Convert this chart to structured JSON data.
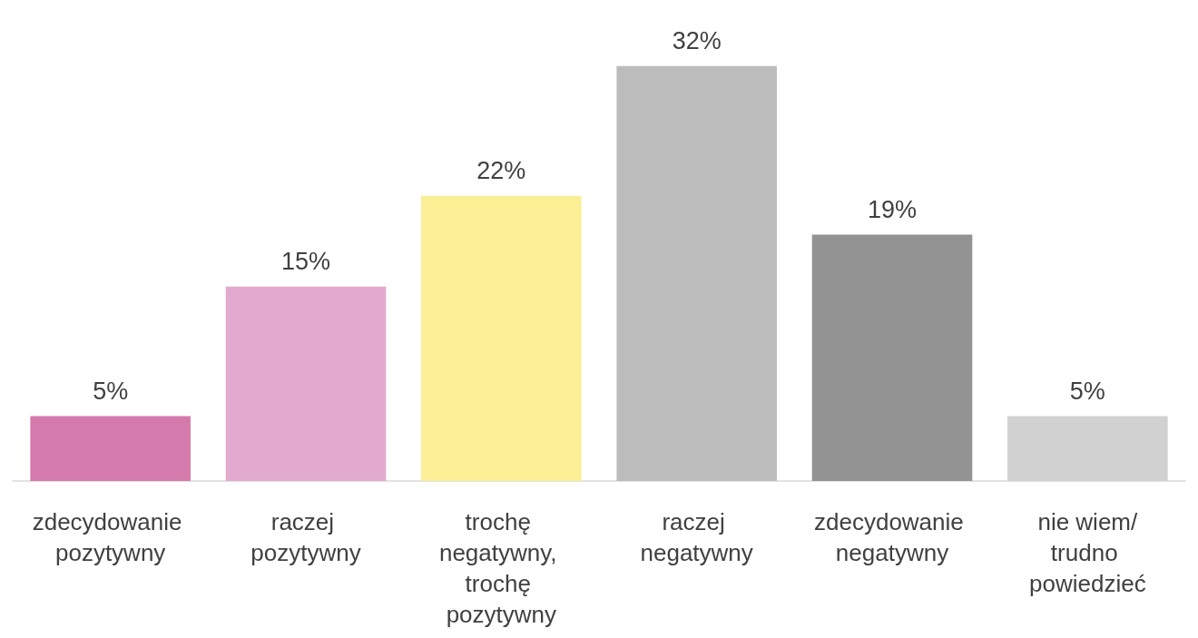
{
  "chart_data": {
    "type": "bar",
    "categories": [
      "zdecydowanie pozytywny",
      "raczej pozytywny",
      "trochę negatywny, trochę pozytywny",
      "raczej negatywny",
      "zdecydowanie negatywny",
      "nie wiem/trudno powiedzieć"
    ],
    "values": [
      5,
      15,
      22,
      32,
      19,
      5
    ],
    "colors": [
      "#d57aad",
      "#e2aacf",
      "#fbef95",
      "#bbbcbb",
      "#939393",
      "#d0d1d0"
    ],
    "value_labels": [
      "5%",
      "15%",
      "22%",
      "32%",
      "19%",
      "5%"
    ],
    "grid": false
  }
}
